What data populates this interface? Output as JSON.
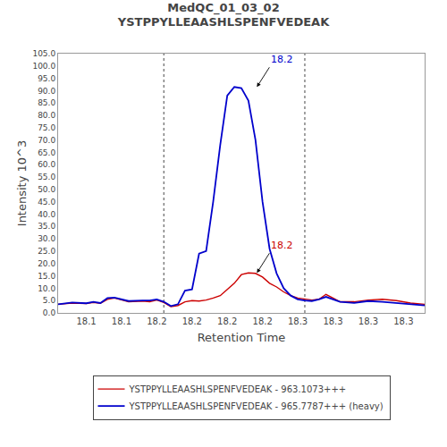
{
  "chart_data": {
    "type": "line",
    "title": "MedQC_01_03_02\nYSTPPYLLEAASHLSPENFVEDEAK",
    "xlabel": "Retention Time",
    "ylabel": "Intensity 10^3",
    "x": [
      18.08,
      18.09,
      18.1,
      18.105,
      18.11,
      18.115,
      18.12,
      18.13,
      18.14,
      18.145,
      18.15,
      18.155,
      18.16,
      18.165,
      18.17,
      18.175,
      18.18,
      18.185,
      18.19,
      18.195,
      18.2,
      18.205,
      18.21,
      18.215,
      18.22,
      18.225,
      18.23,
      18.235,
      18.24,
      18.245,
      18.25,
      18.255,
      18.26,
      18.265,
      18.27,
      18.275,
      18.28,
      18.29,
      18.3,
      18.31,
      18.32,
      18.33,
      18.34
    ],
    "series": [
      {
        "name": "YSTPPYLLEAASHLSPENFVEDEAK - 963.1073+++",
        "color": "#cc0000",
        "values": [
          3.5,
          4.0,
          3.8,
          4.2,
          3.9,
          5.5,
          6.0,
          4.5,
          4.8,
          4.5,
          5.2,
          4.2,
          2.5,
          3.0,
          4.5,
          5.0,
          4.8,
          5.2,
          6.0,
          7.0,
          9.5,
          12.0,
          15.5,
          16.2,
          16.0,
          14.5,
          12.0,
          10.5,
          8.5,
          7.0,
          6.0,
          5.5,
          5.2,
          5.5,
          7.5,
          6.0,
          4.5,
          4.5,
          5.2,
          5.5,
          5.0,
          4.0,
          3.5
        ]
      },
      {
        "name": "YSTPPYLLEAASHLSPENFVEDEAK - 965.7787+++ (heavy)",
        "color": "#0000cc",
        "values": [
          3.5,
          4.2,
          3.9,
          4.5,
          4.0,
          6.0,
          6.2,
          4.8,
          5.0,
          5.0,
          5.5,
          4.5,
          2.8,
          3.5,
          9.0,
          9.5,
          24.0,
          25.0,
          45.0,
          68.0,
          88.0,
          91.5,
          91.0,
          86.0,
          70.0,
          45.0,
          26.0,
          16.0,
          10.0,
          7.0,
          5.5,
          5.0,
          4.8,
          5.5,
          6.5,
          5.5,
          4.5,
          4.0,
          4.8,
          4.5,
          4.0,
          3.5,
          3.0
        ]
      }
    ],
    "vlines": [
      18.155,
      18.255
    ],
    "annotations": [
      {
        "text": "18.2",
        "x": 18.221,
        "y": 91.5,
        "color": "#0000cc"
      },
      {
        "text": "18.2",
        "x": 18.221,
        "y": 16.2,
        "color": "#cc0000"
      }
    ],
    "xlim": [
      18.08,
      18.34
    ],
    "xticks": [
      18.1,
      {
        "value": 18.125,
        "label": "18.1"
      },
      {
        "value": 18.15,
        "label": "18.2"
      },
      {
        "value": 18.175,
        "label": "18.2"
      },
      18.2,
      {
        "value": 18.225,
        "label": "18.2"
      },
      {
        "value": 18.25,
        "label": "18.3"
      },
      {
        "value": 18.275,
        "label": "18.3"
      },
      18.3,
      {
        "value": 18.325,
        "label": "18.3"
      }
    ],
    "ylim": [
      0.0,
      105.0
    ],
    "yticks": [
      {
        "value": 0,
        "label": "0.0"
      },
      {
        "value": 5,
        "label": "5.0"
      },
      {
        "value": 10,
        "label": "10.0"
      },
      {
        "value": 15,
        "label": "15.0"
      },
      {
        "value": 20,
        "label": "20.0"
      },
      {
        "value": 25,
        "label": "25.0"
      },
      {
        "value": 30,
        "label": "30.0"
      },
      {
        "value": 35,
        "label": "35.0"
      },
      {
        "value": 40,
        "label": "40.0"
      },
      {
        "value": 45,
        "label": "45.0"
      },
      {
        "value": 50,
        "label": "50.0"
      },
      {
        "value": 55,
        "label": "55.0"
      },
      {
        "value": 60,
        "label": "60.0"
      },
      {
        "value": 65,
        "label": "65.0"
      },
      {
        "value": 70,
        "label": "70.0"
      },
      {
        "value": 75,
        "label": "75.0"
      },
      {
        "value": 80,
        "label": "80.0"
      },
      {
        "value": 85,
        "label": "85.0"
      },
      {
        "value": 90,
        "label": "90.0"
      },
      {
        "value": 95,
        "label": "95.0"
      },
      {
        "value": 100,
        "label": "100.0"
      },
      {
        "value": 105,
        "label": "105.0"
      }
    ],
    "grid": false,
    "legend": "bottom",
    "line_style": "solid"
  }
}
